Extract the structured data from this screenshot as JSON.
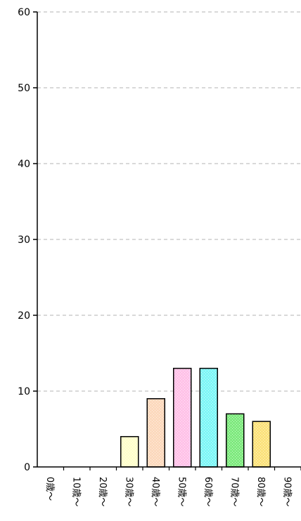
{
  "chart_data": {
    "type": "bar",
    "categories": [
      "0歳～",
      "10歳～",
      "20歳～",
      "30歳～",
      "40歳～",
      "50歳～",
      "60歳～",
      "70歳～",
      "80歳～",
      "90歳～"
    ],
    "values": [
      0,
      0,
      0,
      4,
      9,
      13,
      13,
      7,
      6,
      0
    ],
    "colors": [
      "#ffffff",
      "#ffffff",
      "#ffffff",
      "#ffffcc",
      "#fcd9bd",
      "#ffc2e8",
      "#7ff7f7",
      "#7fea7f",
      "#fbe27c",
      "#ffffff"
    ],
    "ylim": [
      0,
      60
    ],
    "yticks": [
      0,
      10,
      20,
      30,
      40,
      50,
      60
    ],
    "grid": true,
    "title": "",
    "xlabel": "",
    "ylabel": ""
  }
}
